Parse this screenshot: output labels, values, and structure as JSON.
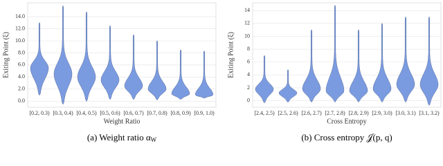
{
  "chart_data": [
    {
      "type": "violin",
      "caption": "(a)  Weight ratio α",
      "caption_sub": "W",
      "ylabel": "Exiting Point (ξ)",
      "xlabel": "Weight Ratio",
      "categories": [
        "[0.2, 0.3)",
        "[0.3, 0.4)",
        "[0.4, 0.5)",
        "[0.5, 0.6)",
        "[0.6, 0.7)",
        "[0.7, 0.8)",
        "[0.8, 0.9)",
        "[0.9, 1.0)"
      ],
      "low": [
        1,
        -0.5,
        0,
        0.3,
        0.3,
        0.2,
        0.3,
        0.5
      ],
      "peak": [
        5.5,
        4.5,
        4,
        3.5,
        2.5,
        2,
        1.2,
        1
      ],
      "high": [
        13,
        15.8,
        14.8,
        12.5,
        11,
        10,
        8.5,
        8.3
      ],
      "color": "#7b9be0",
      "ylim": [
        -1,
        16.3
      ],
      "yticks": [
        {
          "value": 0,
          "label": "0.0"
        },
        {
          "value": 2,
          "label": "2.0"
        },
        {
          "value": 4,
          "label": "4.0"
        },
        {
          "value": 6,
          "label": "6.0"
        },
        {
          "value": 8,
          "label": "8.0"
        },
        {
          "value": 10,
          "label": "10.0"
        },
        {
          "value": 12,
          "label": "12.0"
        },
        {
          "value": 14,
          "label": "14.0"
        }
      ],
      "grid": true
    },
    {
      "type": "violin",
      "caption": "(b)  Cross entropy 𝒥(p, q)",
      "ylabel": "Exiting Point (ξ)",
      "xlabel": "Cross Entropy",
      "categories": [
        "[2.4, 2.5)",
        "[2.5, 2.6)",
        "[2.6, 2.7)",
        "[2.7, 2.8)",
        "[2.8, 2.9)",
        "[2.9, 3.0)",
        "[3.0, 3.1)",
        "[3.1, 3.2)"
      ],
      "low": [
        -0.3,
        -0.2,
        -0.2,
        -0.2,
        -0.2,
        -0.2,
        -0.2,
        -0.7
      ],
      "peak": [
        1.8,
        1.2,
        1.8,
        1.5,
        1.5,
        1.8,
        2.5,
        2.5
      ],
      "high": [
        7,
        4.8,
        11,
        14.8,
        11,
        12,
        13,
        13
      ],
      "color": "#7b9be0",
      "ylim": [
        -1,
        15.2
      ],
      "yticks": [
        0,
        2,
        4,
        6,
        8,
        10,
        12,
        14
      ],
      "grid": true
    }
  ]
}
